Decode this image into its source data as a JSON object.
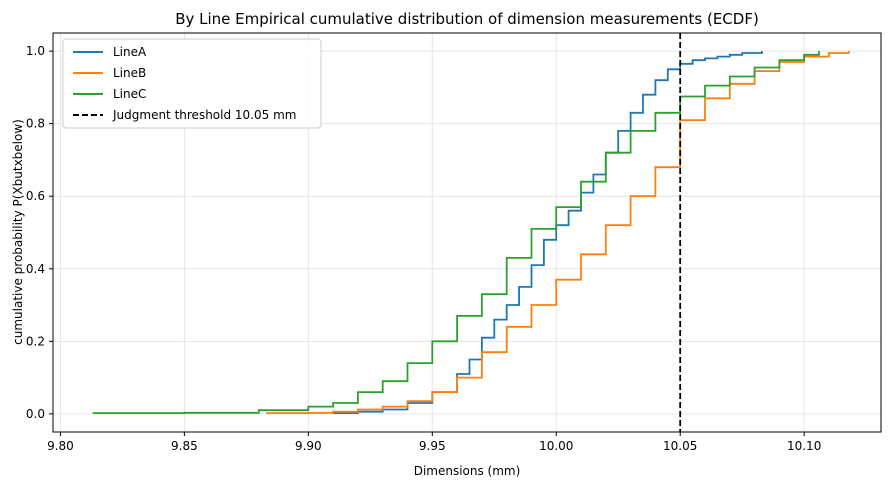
{
  "chart_data": {
    "type": "line",
    "title": "By Line Empirical cumulative distribution of dimension measurements (ECDF)",
    "xlabel": "Dimensions (mm)",
    "ylabel": "cumulative probability P(Xbutxbelow)",
    "xlim": [
      9.797,
      10.131
    ],
    "ylim": [
      -0.05,
      1.05
    ],
    "x_ticks": [
      "9.80",
      "9.85",
      "9.90",
      "9.95",
      "10.00",
      "10.05",
      "10.10"
    ],
    "x_tick_values": [
      9.8,
      9.85,
      9.9,
      9.95,
      10.0,
      10.05,
      10.1
    ],
    "y_ticks": [
      "0.0",
      "0.2",
      "0.4",
      "0.6",
      "0.8",
      "1.0"
    ],
    "y_tick_values": [
      0.0,
      0.2,
      0.4,
      0.6,
      0.8,
      1.0
    ],
    "grid": true,
    "legend_position": "top-left",
    "threshold": {
      "x": 10.05,
      "label": "Judgment threshold 10.05 mm",
      "color": "#000000",
      "style": "dashed"
    },
    "series": [
      {
        "name": "LineA",
        "color": "#1f77b4",
        "points": [
          [
            9.91,
            0.002
          ],
          [
            9.92,
            0.006
          ],
          [
            9.93,
            0.012
          ],
          [
            9.94,
            0.03
          ],
          [
            9.95,
            0.06
          ],
          [
            9.96,
            0.11
          ],
          [
            9.965,
            0.15
          ],
          [
            9.97,
            0.21
          ],
          [
            9.975,
            0.26
          ],
          [
            9.98,
            0.3
          ],
          [
            9.985,
            0.35
          ],
          [
            9.99,
            0.41
          ],
          [
            9.995,
            0.48
          ],
          [
            10.0,
            0.52
          ],
          [
            10.005,
            0.56
          ],
          [
            10.01,
            0.61
          ],
          [
            10.015,
            0.66
          ],
          [
            10.02,
            0.72
          ],
          [
            10.025,
            0.78
          ],
          [
            10.03,
            0.83
          ],
          [
            10.035,
            0.88
          ],
          [
            10.04,
            0.92
          ],
          [
            10.045,
            0.95
          ],
          [
            10.05,
            0.965
          ],
          [
            10.055,
            0.975
          ],
          [
            10.06,
            0.98
          ],
          [
            10.065,
            0.985
          ],
          [
            10.07,
            0.99
          ],
          [
            10.075,
            0.995
          ],
          [
            10.083,
            1.0
          ]
        ]
      },
      {
        "name": "LineB",
        "color": "#ff7f0e",
        "points": [
          [
            9.883,
            0.002
          ],
          [
            9.9,
            0.003
          ],
          [
            9.91,
            0.006
          ],
          [
            9.92,
            0.012
          ],
          [
            9.93,
            0.02
          ],
          [
            9.94,
            0.035
          ],
          [
            9.95,
            0.06
          ],
          [
            9.96,
            0.1
          ],
          [
            9.97,
            0.17
          ],
          [
            9.98,
            0.24
          ],
          [
            9.99,
            0.3
          ],
          [
            10.0,
            0.37
          ],
          [
            10.01,
            0.44
          ],
          [
            10.02,
            0.52
          ],
          [
            10.03,
            0.6
          ],
          [
            10.04,
            0.68
          ],
          [
            10.05,
            0.81
          ],
          [
            10.06,
            0.87
          ],
          [
            10.07,
            0.91
          ],
          [
            10.08,
            0.945
          ],
          [
            10.09,
            0.97
          ],
          [
            10.1,
            0.985
          ],
          [
            10.11,
            0.995
          ],
          [
            10.118,
            1.0
          ]
        ]
      },
      {
        "name": "LineC",
        "color": "#2ca02c",
        "points": [
          [
            9.813,
            0.002
          ],
          [
            9.85,
            0.003
          ],
          [
            9.88,
            0.01
          ],
          [
            9.9,
            0.02
          ],
          [
            9.91,
            0.03
          ],
          [
            9.92,
            0.06
          ],
          [
            9.93,
            0.09
          ],
          [
            9.94,
            0.14
          ],
          [
            9.95,
            0.2
          ],
          [
            9.96,
            0.27
          ],
          [
            9.97,
            0.33
          ],
          [
            9.98,
            0.43
          ],
          [
            9.99,
            0.51
          ],
          [
            10.0,
            0.57
          ],
          [
            10.01,
            0.64
          ],
          [
            10.02,
            0.72
          ],
          [
            10.03,
            0.78
          ],
          [
            10.04,
            0.83
          ],
          [
            10.05,
            0.875
          ],
          [
            10.06,
            0.905
          ],
          [
            10.07,
            0.93
          ],
          [
            10.08,
            0.955
          ],
          [
            10.09,
            0.975
          ],
          [
            10.1,
            0.99
          ],
          [
            10.106,
            1.0
          ]
        ]
      }
    ]
  }
}
